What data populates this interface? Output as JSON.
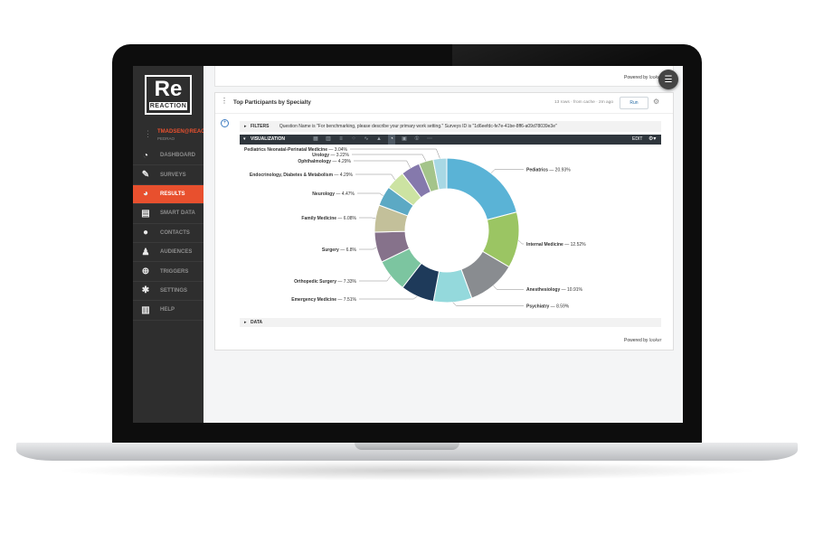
{
  "sidebar": {
    "logo_big": "Re",
    "logo_small": "REACTION",
    "user_name": "TMADSEN@REAC...",
    "user_sub": "PEDRAO",
    "items": [
      {
        "label": "DASHBOARD",
        "icon": "dashboard-icon",
        "glyph": "◔"
      },
      {
        "label": "SURVEYS",
        "icon": "pencil-icon",
        "glyph": "✎"
      },
      {
        "label": "RESULTS",
        "icon": "pie-chart-icon",
        "glyph": "◕",
        "active": true
      },
      {
        "label": "SMART DATA",
        "icon": "book-icon",
        "glyph": "▤"
      },
      {
        "label": "CONTACTS",
        "icon": "person-icon",
        "glyph": "●"
      },
      {
        "label": "AUDIENCES",
        "icon": "people-icon",
        "glyph": "♟"
      },
      {
        "label": "TRIGGERS",
        "icon": "target-icon",
        "glyph": "⊕"
      },
      {
        "label": "SETTINGS",
        "icon": "gear-icon",
        "glyph": "✱"
      },
      {
        "label": "HELP",
        "icon": "help-books-icon",
        "glyph": "▥"
      }
    ]
  },
  "top": {
    "powered_by": "Powered by",
    "brand": "looker"
  },
  "card": {
    "title": "Top Participants by Specialty",
    "cache": "13 rows · from cache · 2m ago",
    "run_label": "Run",
    "filters_label": "FILTERS",
    "filters_text": "Question Name is \"For benchmarking, please describe your primary work setting.\"   Surveys ID is \"1d6eefdc-fe7e-41be-8ff6-a09d78039e3e\"",
    "viz_label": "VISUALIZATION",
    "edit_label": "EDIT",
    "data_label": "DATA",
    "powered_by": "Powered by",
    "brand": "looker"
  },
  "chart_data": {
    "type": "pie",
    "donut": true,
    "legend": "leader-lines",
    "slices": [
      {
        "label": "Pediatrics",
        "value": 20.93,
        "color": "#5ab3d6"
      },
      {
        "label": "Internal Medicine",
        "value": 12.52,
        "color": "#9bc563"
      },
      {
        "label": "Anesthesiology",
        "value": 10.91,
        "color": "#898c90"
      },
      {
        "label": "Psychiatry",
        "value": 8.59,
        "color": "#94d9dc"
      },
      {
        "label": "Emergency Medicine",
        "value": 7.51,
        "color": "#1e3a5a"
      },
      {
        "label": "Orthopedic Surgery",
        "value": 7.33,
        "color": "#7cc5a0"
      },
      {
        "label": "Surgery",
        "value": 6.8,
        "color": "#86728b"
      },
      {
        "label": "Family Medicine",
        "value": 6.08,
        "color": "#c3c09a"
      },
      {
        "label": "Neurology",
        "value": 4.47,
        "color": "#5ca9c4"
      },
      {
        "label": "Endocrinology, Diabetes & Metabolism",
        "value": 4.29,
        "color": "#cce3a2"
      },
      {
        "label": "Ophthalmology",
        "value": 4.29,
        "color": "#8579ac"
      },
      {
        "label": "Urology",
        "value": 3.22,
        "color": "#a4c48a"
      },
      {
        "label": "Pediatrics Neonatal-Perinatal Medicine",
        "value": 3.04,
        "color": "#a8d8e4"
      }
    ]
  }
}
